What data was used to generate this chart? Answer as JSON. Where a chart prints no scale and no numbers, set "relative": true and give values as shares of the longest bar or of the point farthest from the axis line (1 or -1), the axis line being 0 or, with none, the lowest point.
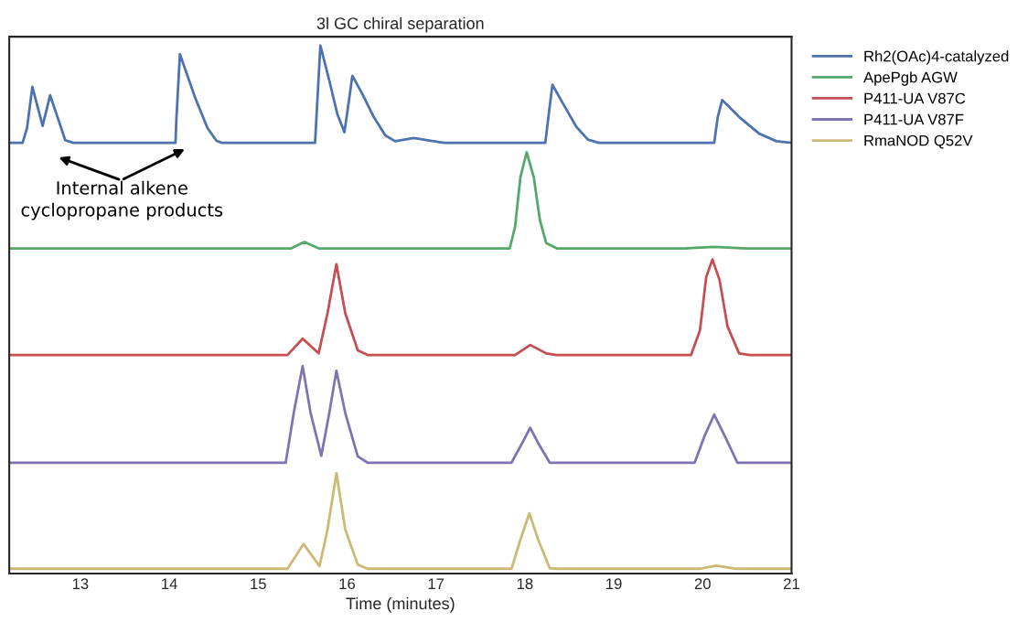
{
  "chart_data": {
    "type": "line",
    "title": "3l GC chiral separation",
    "xlabel": "Time (minutes)",
    "relative": true,
    "xlim": [
      12.2,
      21
    ],
    "xticks": [
      13,
      14,
      15,
      16,
      17,
      18,
      19,
      20,
      21
    ],
    "tick_labels": "x",
    "grid": false,
    "legend": "top right",
    "marker": "none",
    "line_style": "solid",
    "annotations": [
      "Internal alkene\ncyclopropane products"
    ],
    "series": [
      {
        "name": "Rh2(OAc)4-catalyzed",
        "color": "#4c72b0",
        "x": [
          12.2,
          12.35,
          12.4,
          12.46,
          12.575,
          12.66,
          12.75,
          12.83,
          12.92,
          14.07,
          14.08,
          14.12,
          14.29,
          14.43,
          14.53,
          14.59,
          15.63,
          15.64,
          15.67,
          15.7,
          15.8,
          15.89,
          15.97,
          16.01,
          16.06,
          16.17,
          16.3,
          16.43,
          16.54,
          16.75,
          16.94,
          17.09,
          18.23,
          18.26,
          18.31,
          18.43,
          18.58,
          18.71,
          18.83,
          20.13,
          20.17,
          20.22,
          20.41,
          20.64,
          20.83,
          21.0
        ],
        "values": [
          0.816,
          0.816,
          0.844,
          0.922,
          0.848,
          0.906,
          0.861,
          0.821,
          0.816,
          0.816,
          0.861,
          0.984,
          0.902,
          0.844,
          0.82,
          0.816,
          0.816,
          0.816,
          0.909,
          1.0,
          0.934,
          0.871,
          0.836,
          0.883,
          0.943,
          0.909,
          0.865,
          0.83,
          0.819,
          0.825,
          0.82,
          0.816,
          0.816,
          0.858,
          0.926,
          0.89,
          0.846,
          0.822,
          0.816,
          0.816,
          0.865,
          0.897,
          0.865,
          0.833,
          0.819,
          0.816
        ]
      },
      {
        "name": "ApePgb AGW",
        "color": "#55a868",
        "x": [
          12.2,
          15.37,
          15.52,
          15.68,
          17.83,
          17.89,
          17.95,
          18.02,
          18.1,
          18.17,
          18.24,
          18.36,
          19.8,
          20.13,
          20.5,
          21.0
        ],
        "values": [
          0.616,
          0.616,
          0.628,
          0.616,
          0.616,
          0.657,
          0.751,
          0.798,
          0.751,
          0.669,
          0.626,
          0.616,
          0.616,
          0.619,
          0.616,
          0.616
        ]
      },
      {
        "name": "P411-UA V87C",
        "color": "#c44e52",
        "x": [
          12.2,
          15.33,
          15.5,
          15.68,
          15.78,
          15.88,
          15.98,
          16.12,
          16.23,
          17.89,
          18.06,
          18.24,
          18.36,
          19.87,
          19.97,
          20.04,
          20.11,
          20.19,
          20.28,
          20.41,
          20.53,
          21.0
        ],
        "values": [
          0.414,
          0.414,
          0.445,
          0.417,
          0.493,
          0.586,
          0.493,
          0.423,
          0.414,
          0.414,
          0.433,
          0.417,
          0.414,
          0.414,
          0.461,
          0.562,
          0.595,
          0.556,
          0.468,
          0.417,
          0.414,
          0.414
        ]
      },
      {
        "name": "P411-UA V87F",
        "color": "#8172b2",
        "x": [
          12.2,
          15.31,
          15.4,
          15.5,
          15.59,
          15.71,
          15.8,
          15.88,
          15.98,
          16.12,
          16.23,
          17.85,
          17.97,
          18.06,
          18.15,
          18.28,
          19.91,
          20.02,
          20.13,
          20.25,
          20.39,
          21.0
        ],
        "values": [
          0.21,
          0.21,
          0.304,
          0.393,
          0.304,
          0.223,
          0.304,
          0.384,
          0.304,
          0.222,
          0.21,
          0.21,
          0.247,
          0.276,
          0.247,
          0.21,
          0.21,
          0.26,
          0.301,
          0.26,
          0.21,
          0.21
        ]
      },
      {
        "name": "RmaNOD Q52V",
        "color": "#ccb974",
        "x": [
          12.2,
          15.33,
          15.51,
          15.69,
          15.78,
          15.88,
          15.98,
          16.12,
          16.23,
          17.85,
          17.95,
          18.05,
          18.15,
          18.28,
          18.36,
          19.97,
          20.15,
          20.38,
          21.0
        ],
        "values": [
          0.009,
          0.009,
          0.056,
          0.014,
          0.083,
          0.19,
          0.083,
          0.017,
          0.009,
          0.009,
          0.064,
          0.114,
          0.064,
          0.01,
          0.009,
          0.009,
          0.015,
          0.009,
          0.009
        ]
      }
    ]
  }
}
